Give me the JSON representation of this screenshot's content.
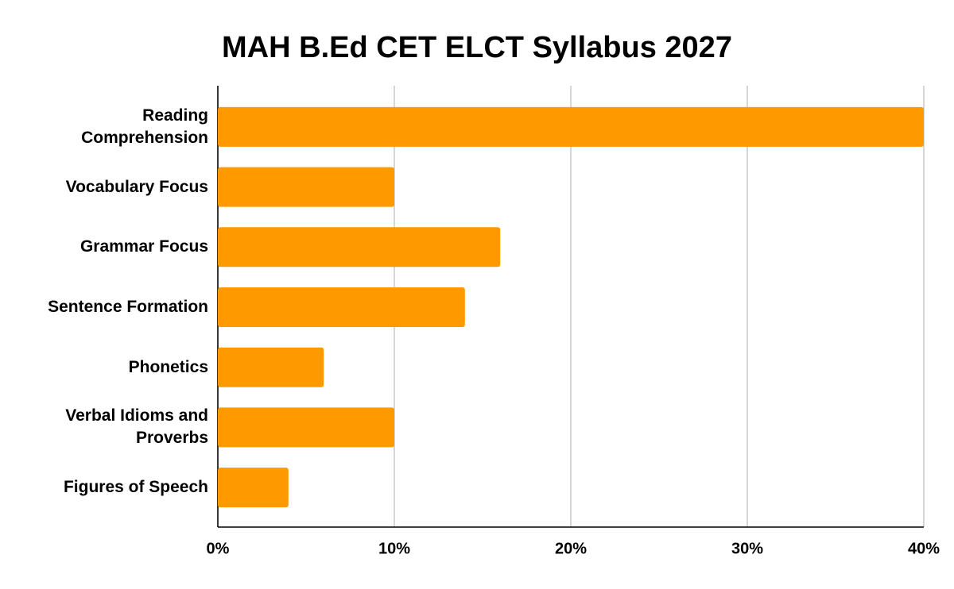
{
  "chart_data": {
    "type": "bar",
    "orientation": "horizontal",
    "title": "MAH B.Ed CET ELCT Syllabus 2027",
    "categories": [
      "Reading Comprehension",
      "Vocabulary Focus",
      "Grammar Focus",
      "Sentence Formation",
      "Phonetics",
      "Verbal Idioms and Proverbs",
      "Figures of Speech"
    ],
    "values": [
      40,
      10,
      16,
      14,
      6,
      10,
      4
    ],
    "color": "#ff9900",
    "xlim": [
      0,
      40
    ],
    "xticks": [
      {
        "value": 0,
        "label": "0%"
      },
      {
        "value": 10,
        "label": "10%"
      },
      {
        "value": 20,
        "label": "20%"
      },
      {
        "value": 30,
        "label": "30%"
      },
      {
        "value": 40,
        "label": "40%"
      }
    ],
    "grid": true
  }
}
